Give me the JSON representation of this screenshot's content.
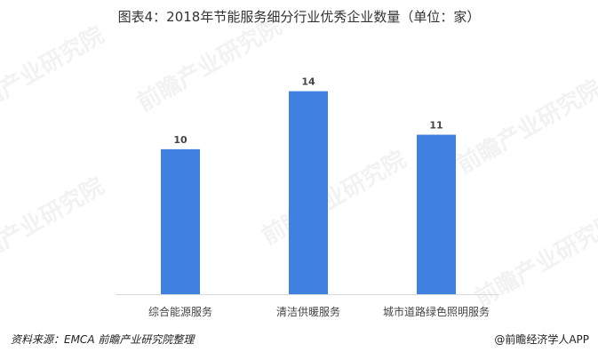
{
  "chart_data": {
    "type": "bar",
    "title": "图表4：2018年节能服务细分行业优秀企业数量（单位：家）",
    "categories": [
      "综合能源服务",
      "清洁供暖服务",
      "城市道路绿色照明服务"
    ],
    "values": [
      10,
      14,
      11
    ],
    "xlabel": "",
    "ylabel": "",
    "ylim": [
      0,
      16
    ],
    "grid": false,
    "bar_color": "#3f80e0"
  },
  "footer": {
    "source": "资料来源：EMCA 前瞻产业研究院整理",
    "brand": "@前瞻经济学人APP"
  },
  "watermark": "前瞻产业研究院"
}
